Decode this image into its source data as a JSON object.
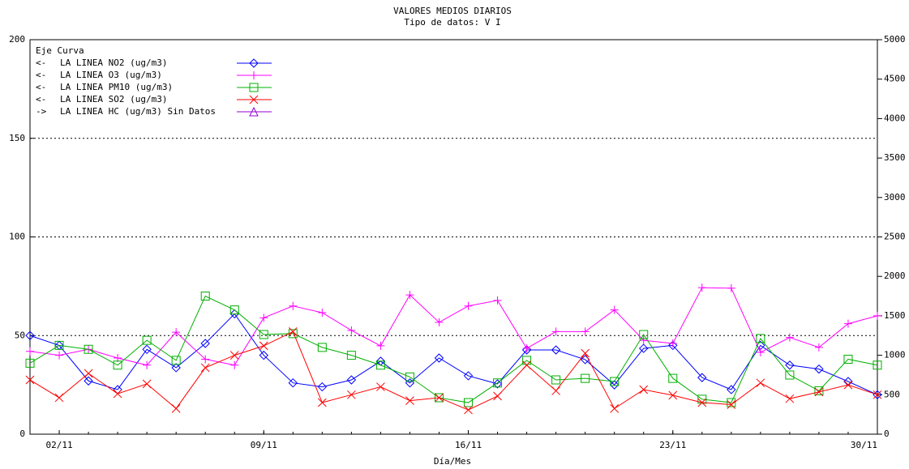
{
  "chart_data": {
    "type": "line",
    "title": "VALORES MEDIOS DIARIOS",
    "subtitle": "Tipo de datos:  V I",
    "x_label": "Día/Mes",
    "legend_title": "Eje Curva",
    "x": [
      1,
      2,
      3,
      4,
      5,
      6,
      7,
      8,
      9,
      10,
      11,
      12,
      13,
      14,
      15,
      16,
      17,
      18,
      19,
      20,
      21,
      22,
      23,
      24,
      25,
      26,
      27,
      28,
      29,
      30
    ],
    "xlim": [
      1,
      30
    ],
    "xticks": [
      {
        "value": 2,
        "label": "02/11"
      },
      {
        "value": 9,
        "label": "09/11"
      },
      {
        "value": 16,
        "label": "16/11"
      },
      {
        "value": 23,
        "label": "23/11"
      },
      {
        "value": 30,
        "label": "30/11"
      }
    ],
    "ylim": [
      0,
      200
    ],
    "yticks": [
      0,
      50,
      100,
      150,
      200
    ],
    "y2lim": [
      0,
      5000
    ],
    "y2ticks": [
      0,
      500,
      1000,
      1500,
      2000,
      2500,
      3000,
      3500,
      4000,
      4500,
      5000
    ],
    "grid": true,
    "series": [
      {
        "name": "LA LINEA NO2  (ug/m3)",
        "axis_mark": "<-",
        "color": "#0000ff",
        "marker": "diamond",
        "values": [
          50,
          45,
          27,
          22.6,
          43,
          33.7,
          46,
          61,
          40,
          26,
          24,
          27.5,
          37,
          26,
          38.6,
          29.6,
          25.5,
          42.7,
          42.7,
          37.8,
          25,
          43.5,
          45,
          28.7,
          22.6,
          45,
          35,
          33,
          26.7,
          20
        ]
      },
      {
        "name": "LA LINEA O3  (ug/m3)",
        "axis_mark": "<-",
        "color": "#ff00ff",
        "marker": "plus",
        "values": [
          42,
          40,
          43,
          38.6,
          35,
          51.7,
          38,
          35,
          59,
          65,
          61.6,
          52.6,
          44.8,
          70.6,
          56.7,
          65,
          67.8,
          43.5,
          52,
          52,
          63,
          47.6,
          46,
          74.3,
          74,
          41.5,
          49,
          44,
          56,
          60
        ]
      },
      {
        "name": "LA LINEA PM10  (ug/m3)",
        "axis_mark": "<-",
        "color": "#00b000",
        "marker": "square",
        "values": [
          36,
          45,
          43,
          35,
          47.6,
          37.4,
          70,
          63,
          50.5,
          51,
          44,
          40,
          35,
          29,
          18.5,
          16,
          26,
          37.4,
          27.5,
          28.3,
          26.7,
          50.5,
          28.3,
          17.7,
          16,
          48.5,
          30,
          22,
          38,
          35
        ]
      },
      {
        "name": "LA LINEA SO2  (ug/m3)",
        "axis_mark": "<-",
        "color": "#ff0000",
        "marker": "x",
        "values": [
          27.5,
          18.5,
          30.8,
          20.5,
          25.5,
          13,
          33.7,
          40,
          44.8,
          52,
          16,
          20,
          24,
          17,
          18.5,
          12.3,
          19.3,
          35,
          22,
          41,
          13,
          22.6,
          19.7,
          16,
          15,
          26,
          18,
          21.4,
          25,
          20
        ]
      }
    ],
    "legend_extra": [
      {
        "name": "LA LINEA HC  (ug/m3) Sin Datos",
        "axis_mark": "->",
        "color": "#9400d3",
        "marker": "triangle"
      }
    ]
  }
}
